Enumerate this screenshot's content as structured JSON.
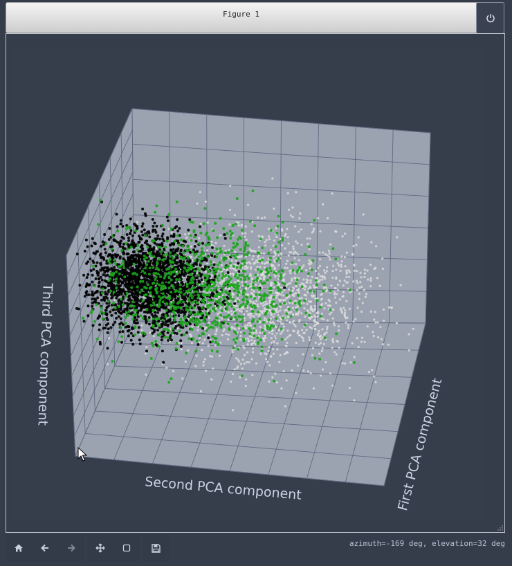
{
  "window": {
    "title": "Figure 1"
  },
  "toolbar": {
    "home_icon": "home-icon",
    "back_icon": "arrow-left-icon",
    "forward_icon": "arrow-right-icon",
    "pan_icon": "move-icon",
    "zoom_icon": "zoom-rect-icon",
    "save_icon": "save-icon"
  },
  "status": {
    "text": "azimuth=-169 deg, elevation=32 deg"
  },
  "colors": {
    "background": "#353c4a",
    "pane": "#9ca3b0",
    "grid": "#5e6a82",
    "label": "#c9d3e4",
    "black_class": "#000000",
    "green_class": "#1aa51a",
    "white_class": "#dcdcdc"
  },
  "chart_data": {
    "type": "scatter",
    "projection": "3d",
    "view": {
      "azimuth": -169,
      "elevation": 32
    },
    "xlabel": "First PCA component",
    "ylabel": "Second PCA component",
    "zlabel": "Third PCA component",
    "grid": true,
    "series": [
      {
        "color": "#000000",
        "count": 2200,
        "center": [
          0.25,
          0.2,
          0.72
        ],
        "spread": [
          0.09,
          0.09,
          0.1
        ]
      },
      {
        "color": "#1aa51a",
        "count": 950,
        "center": [
          0.3,
          0.35,
          0.68
        ],
        "spread": [
          0.13,
          0.16,
          0.12
        ]
      },
      {
        "color": "#dcdcdc",
        "count": 1500,
        "center": [
          0.5,
          0.52,
          0.5
        ],
        "spread": [
          0.17,
          0.17,
          0.12
        ]
      }
    ]
  }
}
